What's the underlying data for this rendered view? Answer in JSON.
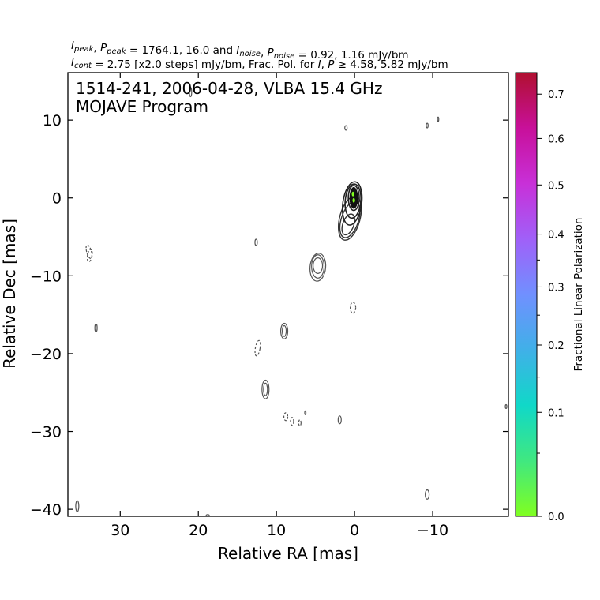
{
  "chart_data": {
    "type": "contour",
    "header_line1": "I_peak, P_peak = 1764.1, 16.0 and I_noise, P_noise = 0.92, 1.16 mJy/bm",
    "header_line2": "I_cont = 2.75 [x2.0 steps] mJy/bm, Frac. Pol. for I, P ≥ 4.58, 5.82 mJy/bm",
    "title_line1": "1514-241, 2006-04-28, VLBA 15.4 GHz",
    "title_line2": "MOJAVE Program",
    "xlabel": "Relative RA [mas]",
    "ylabel": "Relative Dec [mas]",
    "xlim": [
      36.7,
      -19.7
    ],
    "ylim": [
      -40.9,
      16.1
    ],
    "x_ticks": [
      30,
      20,
      10,
      0,
      -10
    ],
    "x_tick_labels": [
      "30",
      "20",
      "10",
      "0",
      "−10"
    ],
    "y_ticks": [
      10,
      0,
      -10,
      -20,
      -30,
      -40
    ],
    "y_tick_labels": [
      "10",
      "0",
      "−10",
      "−20",
      "−30",
      "−40"
    ],
    "colorbar": {
      "label": "Fractional Linear Polarization",
      "range": [
        0.0,
        0.75
      ],
      "ticks": [
        0.0,
        0.1,
        0.2,
        0.3,
        0.4,
        0.5,
        0.6,
        0.7
      ],
      "tick_labels": [
        "0.0",
        "0.1",
        "0.2",
        "0.3",
        "0.4",
        "0.5",
        "0.6",
        "0.7"
      ],
      "colors": [
        "#80ff20",
        "#40e880",
        "#10d8c8",
        "#40b0e8",
        "#7090ff",
        "#a060f8",
        "#c830d8",
        "#c8109a",
        "#b01030"
      ]
    },
    "core": {
      "rings": [
        {
          "x": 0.1,
          "y": 0.0,
          "a": 0.7,
          "b": 1.6,
          "angle": 0
        },
        {
          "x": 0.2,
          "y": -0.4,
          "a": 1.0,
          "b": 2.2,
          "angle": 5
        },
        {
          "x": 0.3,
          "y": -0.7,
          "a": 1.2,
          "b": 2.8,
          "angle": 8
        }
      ],
      "jet": [
        {
          "x": 0.8,
          "y": -3.4,
          "a": 0.7,
          "b": 1.4,
          "angle": 20
        },
        {
          "x": 0.6,
          "y": -2.8,
          "a": 1.1,
          "b": 2.4,
          "angle": 18
        },
        {
          "x": 0.6,
          "y": -2.6,
          "a": 1.3,
          "b": 2.9,
          "angle": 15
        }
      ],
      "polarization": [
        {
          "x": 0.2,
          "y": 0.5,
          "frac": 0.02
        },
        {
          "x": 0.1,
          "y": -0.3,
          "frac": 0.03
        }
      ]
    },
    "positive_contours": [
      {
        "x": 4.7,
        "y": -8.7,
        "a": 0.6,
        "b": 1.0,
        "angle": 0
      },
      {
        "x": 4.7,
        "y": -8.8,
        "a": 0.8,
        "b": 1.5,
        "angle": 0
      },
      {
        "x": 4.7,
        "y": -8.9,
        "a": 1.0,
        "b": 1.8,
        "angle": 5
      },
      {
        "x": 9.0,
        "y": -17.1,
        "a": 0.25,
        "b": 0.7,
        "angle": 0
      },
      {
        "x": 9.0,
        "y": -17.1,
        "a": 0.45,
        "b": 1.0,
        "angle": 0
      },
      {
        "x": 11.4,
        "y": -24.6,
        "a": 0.25,
        "b": 0.8,
        "angle": 0
      },
      {
        "x": 11.4,
        "y": -24.6,
        "a": 0.45,
        "b": 1.2,
        "angle": 0
      },
      {
        "x": 33.1,
        "y": -16.7,
        "a": 0.15,
        "b": 0.5,
        "angle": 0
      },
      {
        "x": 12.6,
        "y": -5.7,
        "a": 0.15,
        "b": 0.4,
        "angle": 0
      },
      {
        "x": 1.1,
        "y": 9.0,
        "a": 0.15,
        "b": 0.3,
        "angle": 0
      },
      {
        "x": -9.3,
        "y": 9.3,
        "a": 0.12,
        "b": 0.3,
        "angle": 0
      },
      {
        "x": -10.7,
        "y": 10.1,
        "a": 0.08,
        "b": 0.3,
        "angle": 0
      },
      {
        "x": 21.0,
        "y": 13.6,
        "a": 0.15,
        "b": 0.6,
        "angle": 0
      },
      {
        "x": 1.9,
        "y": -28.5,
        "a": 0.2,
        "b": 0.5,
        "angle": 0
      },
      {
        "x": -9.3,
        "y": -38.1,
        "a": 0.25,
        "b": 0.6,
        "angle": 0
      },
      {
        "x": 35.5,
        "y": -39.6,
        "a": 0.2,
        "b": 0.7,
        "angle": 0
      },
      {
        "x": 6.3,
        "y": -27.6,
        "a": 0.08,
        "b": 0.25,
        "angle": 0
      },
      {
        "x": -19.4,
        "y": -26.8,
        "a": 0.1,
        "b": 0.25,
        "angle": 0
      },
      {
        "x": 18.8,
        "y": -40.8,
        "a": 0.2,
        "b": 0.12,
        "angle": 0
      }
    ],
    "negative_contours": [
      {
        "x": 34.0,
        "y": -6.9,
        "a": 0.3,
        "b": 0.9,
        "angle": -15
      },
      {
        "x": 33.9,
        "y": -7.4,
        "a": 0.3,
        "b": 0.8,
        "angle": 10
      },
      {
        "x": 12.4,
        "y": -19.3,
        "a": 0.3,
        "b": 1.0,
        "angle": 10
      },
      {
        "x": 0.2,
        "y": -14.1,
        "a": 0.35,
        "b": 0.7,
        "angle": 0
      },
      {
        "x": 8.8,
        "y": -28.1,
        "a": 0.25,
        "b": 0.5,
        "angle": 0
      },
      {
        "x": 8.0,
        "y": -28.7,
        "a": 0.2,
        "b": 0.5,
        "angle": 0
      },
      {
        "x": 7.0,
        "y": -28.9,
        "a": 0.15,
        "b": 0.4,
        "angle": 0
      }
    ]
  }
}
